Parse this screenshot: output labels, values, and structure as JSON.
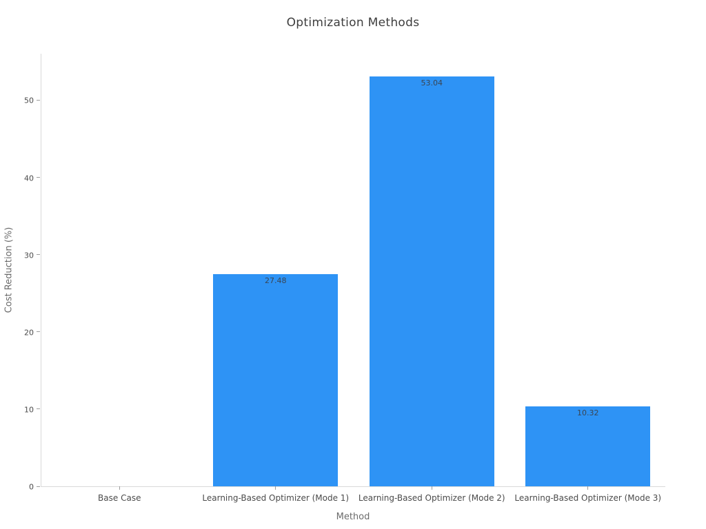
{
  "chart_data": {
    "type": "bar",
    "title": "Optimization Methods",
    "xlabel": "Method",
    "ylabel": "Cost Reduction (%)",
    "categories": [
      "Base Case",
      "Learning-Based Optimizer (Mode 1)",
      "Learning-Based Optimizer (Mode 2)",
      "Learning-Based Optimizer (Mode 3)"
    ],
    "values": [
      0,
      27.48,
      53.04,
      10.32
    ],
    "bar_labels": [
      "",
      "27.48",
      "53.04",
      "10.32"
    ],
    "yticks": [
      0,
      10,
      20,
      30,
      40,
      50
    ],
    "ylim": [
      0,
      56.1
    ],
    "grid": false,
    "legend": "none",
    "colors": {
      "bar": "#2E93F5",
      "title": "#3d3d3d",
      "tick_label": "#4a4a4a",
      "axis_title": "#6b6b6b",
      "axis_line": "#d9d9d9",
      "tick_mark": "#9b9b9b",
      "bar_value_label": "#3a4552",
      "background": "#ffffff"
    }
  }
}
